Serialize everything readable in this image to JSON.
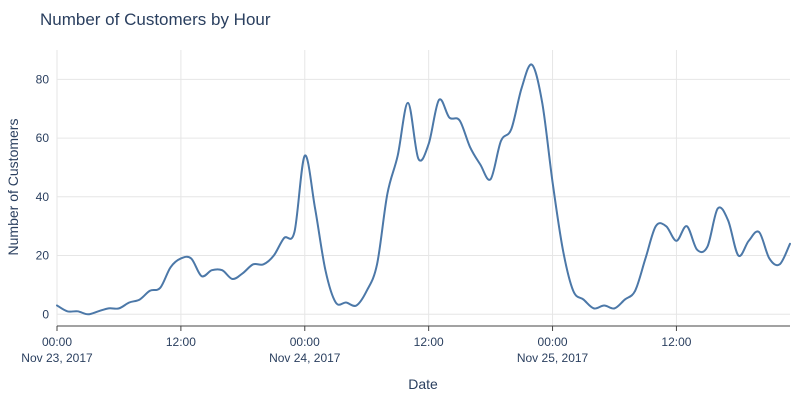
{
  "chart_data": {
    "type": "line",
    "title": "Number of Customers by Hour",
    "xlabel": "Date",
    "ylabel": "Number of Customers",
    "x_range": [
      "2017-11-23 00:00",
      "2017-11-25 23:00"
    ],
    "ylim": [
      -4,
      90
    ],
    "y_ticks": [
      0,
      20,
      40,
      60,
      80
    ],
    "x_ticks": [
      {
        "value": "2017-11-23 00:00",
        "label_time": "00:00",
        "label_date": "Nov 23, 2017"
      },
      {
        "value": "2017-11-23 12:00",
        "label_time": "12:00",
        "label_date": ""
      },
      {
        "value": "2017-11-24 00:00",
        "label_time": "00:00",
        "label_date": "Nov 24, 2017"
      },
      {
        "value": "2017-11-24 12:00",
        "label_time": "12:00",
        "label_date": ""
      },
      {
        "value": "2017-11-25 00:00",
        "label_time": "00:00",
        "label_date": "Nov 25, 2017"
      },
      {
        "value": "2017-11-25 12:00",
        "label_time": "12:00",
        "label_date": ""
      }
    ],
    "grid": true,
    "colors": {
      "line": "#4c78a8"
    },
    "series": [
      {
        "x": [
          "2017-11-23 00:00",
          "2017-11-23 01:00",
          "2017-11-23 02:00",
          "2017-11-23 03:00",
          "2017-11-23 04:00",
          "2017-11-23 05:00",
          "2017-11-23 06:00",
          "2017-11-23 07:00",
          "2017-11-23 08:00",
          "2017-11-23 09:00",
          "2017-11-23 10:00",
          "2017-11-23 11:00",
          "2017-11-23 12:00",
          "2017-11-23 13:00",
          "2017-11-23 14:00",
          "2017-11-23 15:00",
          "2017-11-23 16:00",
          "2017-11-23 17:00",
          "2017-11-23 18:00",
          "2017-11-23 19:00",
          "2017-11-23 20:00",
          "2017-11-23 21:00",
          "2017-11-23 22:00",
          "2017-11-23 23:00",
          "2017-11-24 00:00",
          "2017-11-24 01:00",
          "2017-11-24 02:00",
          "2017-11-24 03:00",
          "2017-11-24 04:00",
          "2017-11-24 05:00",
          "2017-11-24 06:00",
          "2017-11-24 07:00",
          "2017-11-24 08:00",
          "2017-11-24 09:00",
          "2017-11-24 10:00",
          "2017-11-24 11:00",
          "2017-11-24 12:00",
          "2017-11-24 13:00",
          "2017-11-24 14:00",
          "2017-11-24 15:00",
          "2017-11-24 16:00",
          "2017-11-24 17:00",
          "2017-11-24 18:00",
          "2017-11-24 19:00",
          "2017-11-24 20:00",
          "2017-11-24 21:00",
          "2017-11-24 22:00",
          "2017-11-24 23:00",
          "2017-11-25 00:00",
          "2017-11-25 01:00",
          "2017-11-25 02:00",
          "2017-11-25 03:00",
          "2017-11-25 04:00",
          "2017-11-25 05:00",
          "2017-11-25 06:00",
          "2017-11-25 07:00",
          "2017-11-25 08:00",
          "2017-11-25 09:00",
          "2017-11-25 10:00",
          "2017-11-25 11:00",
          "2017-11-25 12:00",
          "2017-11-25 13:00",
          "2017-11-25 14:00",
          "2017-11-25 15:00",
          "2017-11-25 16:00",
          "2017-11-25 17:00",
          "2017-11-25 18:00",
          "2017-11-25 19:00",
          "2017-11-25 20:00",
          "2017-11-25 21:00",
          "2017-11-25 22:00",
          "2017-11-25 23:00"
        ],
        "y": [
          3,
          1,
          1,
          0,
          1,
          2,
          2,
          4,
          5,
          8,
          9,
          16,
          19,
          19,
          13,
          15,
          15,
          12,
          14,
          17,
          17,
          20,
          26,
          28,
          54,
          36,
          15,
          4,
          4,
          3,
          8,
          17,
          41,
          54,
          72,
          53,
          58,
          73,
          67,
          66,
          57,
          51,
          46,
          59,
          63,
          77,
          85,
          72,
          45,
          22,
          8,
          5,
          2,
          3,
          2,
          5,
          8,
          19,
          30,
          30,
          25,
          30,
          22,
          23,
          36,
          32,
          20,
          25,
          28,
          19,
          17,
          24
        ]
      }
    ]
  }
}
